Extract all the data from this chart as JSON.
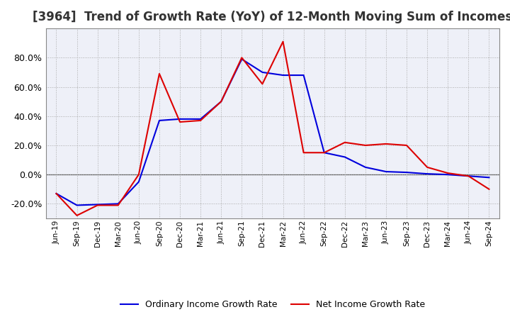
{
  "title": "[3964]  Trend of Growth Rate (YoY) of 12-Month Moving Sum of Incomes",
  "title_fontsize": 12,
  "ylim": [
    -30,
    100
  ],
  "yticks": [
    -20.0,
    0.0,
    20.0,
    40.0,
    60.0,
    80.0
  ],
  "background_color": "#ffffff",
  "plot_bg_color": "#eef0f8",
  "grid_color": "#aaaaaa",
  "x_labels": [
    "Jun-19",
    "Sep-19",
    "Dec-19",
    "Mar-20",
    "Jun-20",
    "Sep-20",
    "Dec-20",
    "Mar-21",
    "Jun-21",
    "Sep-21",
    "Dec-21",
    "Mar-22",
    "Jun-22",
    "Sep-22",
    "Dec-22",
    "Mar-23",
    "Jun-23",
    "Sep-23",
    "Dec-23",
    "Mar-24",
    "Jun-24",
    "Sep-24"
  ],
  "ordinary_income": [
    -13.0,
    -21.0,
    -20.5,
    -20.0,
    -5.0,
    37.0,
    38.0,
    38.0,
    50.0,
    79.0,
    70.0,
    68.0,
    68.0,
    15.0,
    12.0,
    5.0,
    2.0,
    1.5,
    0.5,
    0.0,
    -1.0,
    -2.0
  ],
  "net_income": [
    -13.0,
    -28.0,
    -21.0,
    -21.0,
    0.0,
    69.0,
    36.0,
    37.0,
    50.0,
    80.0,
    62.0,
    91.0,
    15.0,
    15.0,
    22.0,
    20.0,
    21.0,
    20.0,
    5.0,
    1.0,
    -1.0,
    -10.0
  ],
  "ordinary_color": "#0000dd",
  "net_color": "#dd0000",
  "line_width": 1.5,
  "legend_labels": [
    "Ordinary Income Growth Rate",
    "Net Income Growth Rate"
  ]
}
